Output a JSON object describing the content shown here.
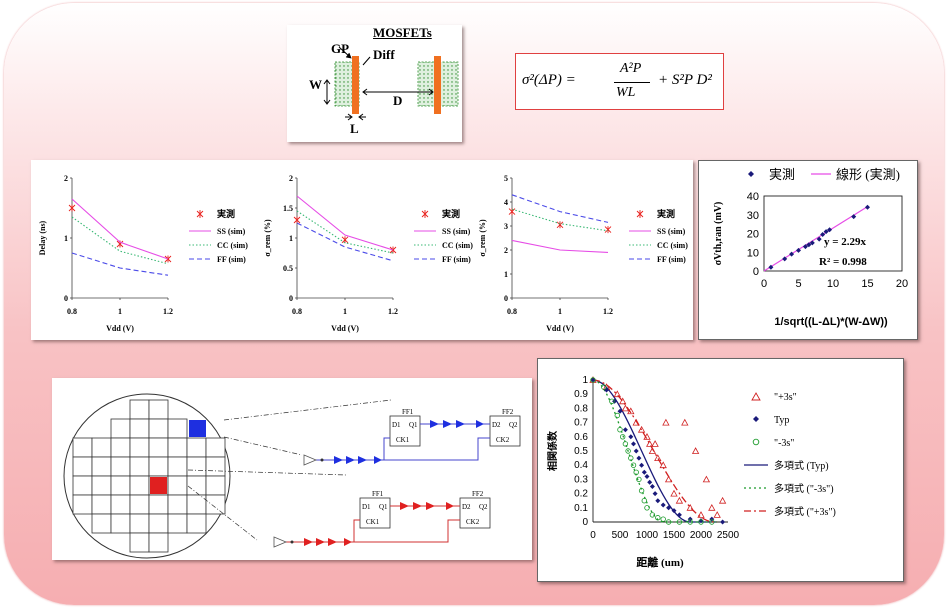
{
  "mosfet": {
    "title": "MOSFETs",
    "gp": "GP",
    "diff": "Diff",
    "w": "W",
    "l": "L",
    "d": "D"
  },
  "formula": {
    "lhs": "σ²(ΔP) =",
    "num": "A²P",
    "den": "WL",
    "term2": "+ S²P D²"
  },
  "common": {
    "legend_meas": "実測",
    "legend_ss": "SS (sim)",
    "legend_cc": "CC (sim)",
    "legend_ff": "FF (sim)",
    "xlabel": "Vdd (V)"
  },
  "charts": [
    {
      "ylabel": "Delay (ns)",
      "ytick": [
        "2",
        "1",
        "0"
      ],
      "xtick": [
        "0.8",
        "1",
        "1.2"
      ]
    },
    {
      "ylabel": "σ_rem (%)",
      "ytick": [
        "2",
        "1.5",
        "1",
        "0.5",
        "0"
      ],
      "xtick": [
        "0.8",
        "1",
        "1.2"
      ]
    },
    {
      "ylabel": "σ_rem (%)",
      "ytick": [
        "5",
        "4",
        "3",
        "2",
        "1",
        "0"
      ],
      "xtick": [
        "0.8",
        "1",
        "1.2"
      ]
    }
  ],
  "fit": {
    "legend_meas": "実測",
    "legend_lin": "線形 (実測)",
    "ylabel": "σVth,ran (mV)",
    "xlabel": "1/sqrt((L-ΔL)*(W-ΔW))",
    "eq": "y = 2.29x",
    "r2": "R² = 0.998",
    "ytick": [
      "40",
      "30",
      "20",
      "10",
      "0"
    ],
    "xtick": [
      "0",
      "5",
      "10",
      "15",
      "20"
    ]
  },
  "wafer": {
    "ff1": "FF1",
    "ff2": "FF2",
    "d1": "D1",
    "q1": "Q1",
    "ck1": "CK1",
    "d2": "D2",
    "q2": "Q2",
    "ck2": "CK2"
  },
  "corr": {
    "ylabel": "相関係数",
    "xlabel": "距離 (um)",
    "ytick": [
      "1",
      "0.9",
      "0.8",
      "0.7",
      "0.6",
      "0.5",
      "0.4",
      "0.3",
      "0.2",
      "0.1",
      "0"
    ],
    "xtick": [
      "0",
      "500",
      "1000",
      "1500",
      "2000",
      "2500"
    ],
    "leg_p3s": "\"+3s\"",
    "leg_typ": "Typ",
    "leg_m3s": "\"-3s\"",
    "leg_poly_typ": "多項式 (Typ)",
    "leg_poly_m3s": "多項式 (\"-3s\")",
    "leg_poly_p3s": "多項式 (\"+3s\")"
  },
  "colors": {
    "red": "#e8201c",
    "blue": "#1f3ddb",
    "navy": "#1a1a7a",
    "green": "#1a9a2a",
    "magenta": "#e64ce6",
    "orange": "#f07020"
  },
  "chart_data": [
    {
      "type": "line",
      "x": [
        0.8,
        1.0,
        1.2
      ],
      "series": [
        {
          "name": "実測",
          "values": [
            1.5,
            0.9,
            0.65
          ]
        },
        {
          "name": "SS (sim)",
          "values": [
            1.65,
            0.93,
            0.65
          ]
        },
        {
          "name": "CC (sim)",
          "values": [
            1.35,
            0.78,
            0.57
          ]
        },
        {
          "name": "FF (sim)",
          "values": [
            0.75,
            0.5,
            0.38
          ]
        }
      ],
      "ylim": [
        0,
        2
      ]
    },
    {
      "type": "line",
      "x": [
        0.8,
        1.0,
        1.2
      ],
      "series": [
        {
          "name": "実測",
          "values": [
            1.3,
            0.97,
            0.8
          ]
        },
        {
          "name": "SS (sim)",
          "values": [
            1.7,
            1.05,
            0.8
          ]
        },
        {
          "name": "CC (sim)",
          "values": [
            1.45,
            0.92,
            0.75
          ]
        },
        {
          "name": "FF (sim)",
          "values": [
            1.25,
            0.85,
            0.62
          ]
        }
      ],
      "ylim": [
        0,
        2
      ]
    },
    {
      "type": "line",
      "x": [
        0.8,
        1.0,
        1.2
      ],
      "series": [
        {
          "name": "実測",
          "values": [
            3.6,
            3.05,
            2.85
          ]
        },
        {
          "name": "SS (sim)",
          "values": [
            2.4,
            2.0,
            1.9
          ]
        },
        {
          "name": "CC (sim)",
          "values": [
            3.7,
            3.1,
            2.8
          ]
        },
        {
          "name": "FF (sim)",
          "values": [
            4.3,
            3.6,
            3.15
          ]
        }
      ],
      "ylim": [
        0,
        5
      ]
    },
    {
      "type": "scatter",
      "xlim": [
        0,
        20
      ],
      "ylim": [
        0,
        40
      ],
      "points": [
        [
          1,
          2
        ],
        [
          3,
          6.5
        ],
        [
          4,
          9
        ],
        [
          5,
          11
        ],
        [
          6,
          13
        ],
        [
          6.5,
          14
        ],
        [
          7,
          15
        ],
        [
          8,
          17
        ],
        [
          8.5,
          19.5
        ],
        [
          9,
          21
        ],
        [
          9.5,
          22
        ],
        [
          13,
          29
        ],
        [
          15,
          34
        ]
      ],
      "fit": {
        "slope": 2.29,
        "r2": 0.998
      }
    },
    {
      "type": "scatter",
      "xlim": [
        0,
        2500
      ],
      "ylim": [
        0,
        1
      ],
      "series": [
        {
          "name": "\"+3s\"",
          "points": [
            [
              0,
              1
            ],
            [
              250,
              0.95
            ],
            [
              450,
              0.9
            ],
            [
              550,
              0.85
            ],
            [
              600,
              0.8
            ],
            [
              700,
              0.78
            ],
            [
              800,
              0.7
            ],
            [
              900,
              0.65
            ],
            [
              1000,
              0.6
            ],
            [
              1050,
              0.55
            ],
            [
              1100,
              0.5
            ],
            [
              1150,
              0.55
            ],
            [
              1200,
              0.45
            ],
            [
              1300,
              0.4
            ],
            [
              1350,
              0.7
            ],
            [
              1400,
              0.3
            ],
            [
              1500,
              0.2
            ],
            [
              1600,
              0.15
            ],
            [
              1700,
              0.7
            ],
            [
              1800,
              0.1
            ],
            [
              1900,
              0.5
            ],
            [
              2000,
              0.05
            ],
            [
              2100,
              0.3
            ],
            [
              2200,
              0.1
            ],
            [
              2300,
              0.05
            ],
            [
              2400,
              0.15
            ]
          ]
        },
        {
          "name": "Typ",
          "points": [
            [
              0,
              1
            ],
            [
              250,
              0.93
            ],
            [
              400,
              0.85
            ],
            [
              500,
              0.78
            ],
            [
              600,
              0.65
            ],
            [
              700,
              0.6
            ],
            [
              750,
              0.55
            ],
            [
              800,
              0.5
            ],
            [
              850,
              0.45
            ],
            [
              900,
              0.4
            ],
            [
              950,
              0.35
            ],
            [
              1000,
              0.32
            ],
            [
              1050,
              0.28
            ],
            [
              1100,
              0.25
            ],
            [
              1150,
              0.2
            ],
            [
              1200,
              0.15
            ],
            [
              1300,
              0.12
            ],
            [
              1400,
              0.1
            ],
            [
              1500,
              0.08
            ],
            [
              1600,
              0.05
            ],
            [
              1800,
              0.02
            ],
            [
              2000,
              0.01
            ],
            [
              2200,
              0.02
            ],
            [
              2400,
              0
            ]
          ]
        },
        {
          "name": "\"-3s\"",
          "points": [
            [
              0,
              1
            ],
            [
              200,
              0.95
            ],
            [
              350,
              0.85
            ],
            [
              450,
              0.75
            ],
            [
              500,
              0.65
            ],
            [
              550,
              0.6
            ],
            [
              600,
              0.55
            ],
            [
              650,
              0.5
            ],
            [
              700,
              0.45
            ],
            [
              750,
              0.4
            ],
            [
              800,
              0.35
            ],
            [
              850,
              0.3
            ],
            [
              900,
              0.22
            ],
            [
              950,
              0.15
            ],
            [
              1000,
              0.1
            ],
            [
              1100,
              0.05
            ],
            [
              1200,
              0.03
            ],
            [
              1300,
              0.02
            ],
            [
              1400,
              0
            ],
            [
              1600,
              0
            ],
            [
              1800,
              0
            ],
            [
              2000,
              0
            ],
            [
              2200,
              0
            ]
          ]
        }
      ]
    }
  ]
}
